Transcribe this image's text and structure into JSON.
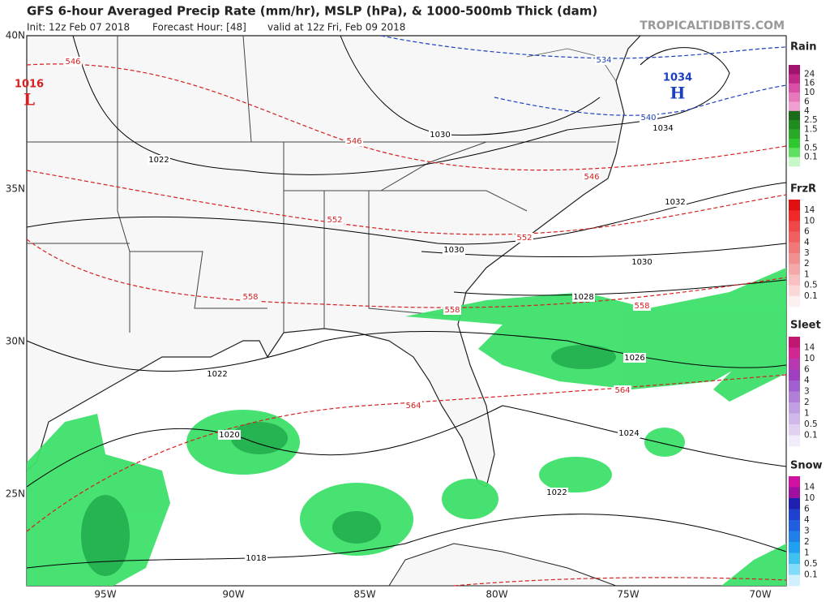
{
  "header": {
    "title": "GFS 6-hour Averaged Precip Rate (mm/hr), MSLP (hPa), & 1000-500mb Thick (dam)",
    "init": "Init: 12z Feb 07 2018",
    "forecast": "Forecast Hour: [48]",
    "valid": "valid at 12z Fri, Feb 09 2018",
    "site": "TROPICALTIDBITS.COM"
  },
  "axes": {
    "lat": [
      "40N",
      "35N",
      "30N",
      "25N"
    ],
    "lon": [
      "95W",
      "90W",
      "85W",
      "80W",
      "75W",
      "70W"
    ]
  },
  "pressure_centers": [
    {
      "value": "1016",
      "letter": "L",
      "color": "#d42020"
    },
    {
      "value": "1034",
      "letter": "H",
      "color": "#1a3fc0"
    }
  ],
  "isobar_labels": [
    "1022",
    "1030",
    "1032",
    "1030",
    "1030",
    "1028",
    "1026",
    "1024",
    "1022",
    "1020",
    "1018",
    "1022",
    "1034"
  ],
  "thickness_labels": [
    "546",
    "546",
    "546",
    "552",
    "552",
    "558",
    "558",
    "558",
    "564",
    "564",
    "534",
    "540"
  ],
  "legends": [
    {
      "title": "Rain",
      "labels": [
        "24",
        "16",
        "10",
        "6",
        "4",
        "2.5",
        "1.5",
        "1",
        "0.5",
        "0.1"
      ],
      "colors": [
        "#a0146e",
        "#c0288a",
        "#d850a4",
        "#e878bc",
        "#f0a0d0",
        "#1a6b1a",
        "#208c20",
        "#28aa28",
        "#30c830",
        "#60e060",
        "#c8f8c8"
      ]
    },
    {
      "title": "FrzR",
      "labels": [
        "14",
        "10",
        "6",
        "4",
        "3",
        "2",
        "1",
        "0.5",
        "0.1"
      ],
      "colors": [
        "#e01010",
        "#f02828",
        "#f04848",
        "#f06060",
        "#f07878",
        "#f09090",
        "#f4a8a8",
        "#f8c0c0",
        "#fad8d8",
        "#fdf0f0"
      ]
    },
    {
      "title": "Sleet",
      "labels": [
        "14",
        "10",
        "6",
        "4",
        "3",
        "2",
        "1",
        "0.5",
        "0.1"
      ],
      "colors": [
        "#c01870",
        "#d02890",
        "#b838b0",
        "#a040c0",
        "#a060d0",
        "#b080d8",
        "#c0a0e0",
        "#d0b8ea",
        "#e0d0f2",
        "#f2ecfa"
      ]
    },
    {
      "title": "Snow",
      "labels": [
        "14",
        "10",
        "6",
        "4",
        "3",
        "2",
        "1",
        "0.5",
        "0.1"
      ],
      "colors": [
        "#d010a0",
        "#a010a0",
        "#2020b0",
        "#2040d0",
        "#2060e0",
        "#2080e8",
        "#20a0f0",
        "#40c0f0",
        "#80dcf8",
        "#d0f0fc"
      ]
    }
  ]
}
